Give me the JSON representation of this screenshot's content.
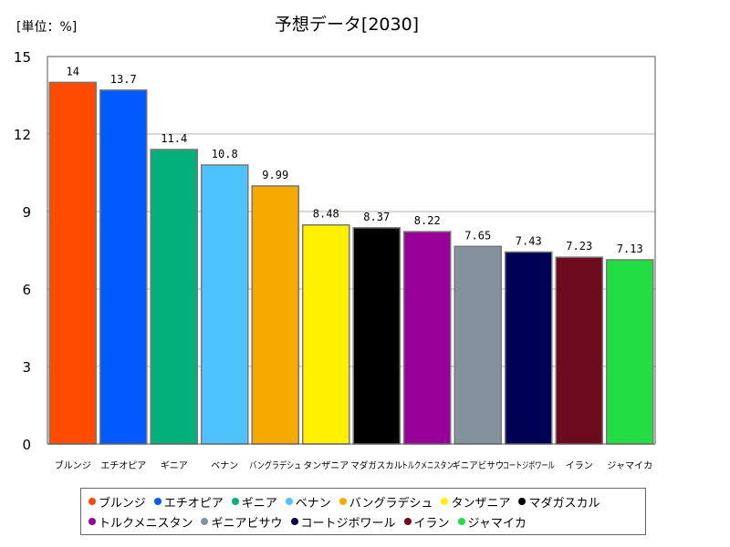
{
  "chart_data": {
    "type": "bar",
    "title": "予想データ[2030]",
    "unit_label": "[単位：%]",
    "ylim": [
      0,
      15
    ],
    "yticks": [
      0,
      3,
      6,
      9,
      12,
      15
    ],
    "grid": true,
    "legend_position": "bottom",
    "categories": [
      "ブルンジ",
      "エチオピア",
      "ギニア",
      "ベナン",
      "バングラデシュ",
      "タンザニア",
      "マダガスカル",
      "トルクメニスタン",
      "ギニアビサウ",
      "コートジボワール",
      "イラン",
      "ジャマイカ"
    ],
    "values": [
      14,
      13.7,
      11.4,
      10.8,
      9.99,
      8.48,
      8.37,
      8.22,
      7.65,
      7.43,
      7.23,
      7.13
    ],
    "value_labels": [
      "14",
      "13.7",
      "11.4",
      "10.8",
      "9.99",
      "8.48",
      "8.37",
      "8.22",
      "7.65",
      "7.43",
      "7.23",
      "7.13"
    ],
    "colors": [
      "#ff4b00",
      "#005aff",
      "#03af7a",
      "#4dc4ff",
      "#f6aa00",
      "#fff100",
      "#000000",
      "#990099",
      "#84919e",
      "#000055",
      "#6e0a1e",
      "#22dd44"
    ]
  }
}
